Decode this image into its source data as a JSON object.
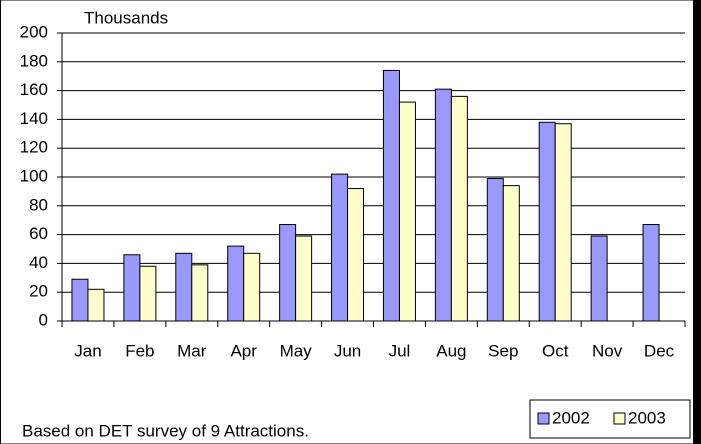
{
  "chart_data": {
    "type": "bar",
    "y_label": "Thousands",
    "note": "Based on DET survey of 9 Attractions.",
    "categories": [
      "Jan",
      "Feb",
      "Mar",
      "Apr",
      "May",
      "Jun",
      "Jul",
      "Aug",
      "Sep",
      "Oct",
      "Nov",
      "Dec"
    ],
    "series": [
      {
        "name": "2002",
        "color": "#9999ff",
        "values": [
          29,
          46,
          47,
          52,
          67,
          102,
          174,
          161,
          99,
          138,
          59,
          67
        ]
      },
      {
        "name": "2003",
        "color": "#ffffcc",
        "values": [
          22,
          38,
          39,
          47,
          59,
          92,
          152,
          156,
          94,
          137,
          null,
          null
        ]
      }
    ],
    "ylim": [
      0,
      200
    ],
    "yticks": [
      0,
      20,
      40,
      60,
      80,
      100,
      120,
      140,
      160,
      180,
      200
    ],
    "grid": true,
    "legend": "bottom-right"
  }
}
